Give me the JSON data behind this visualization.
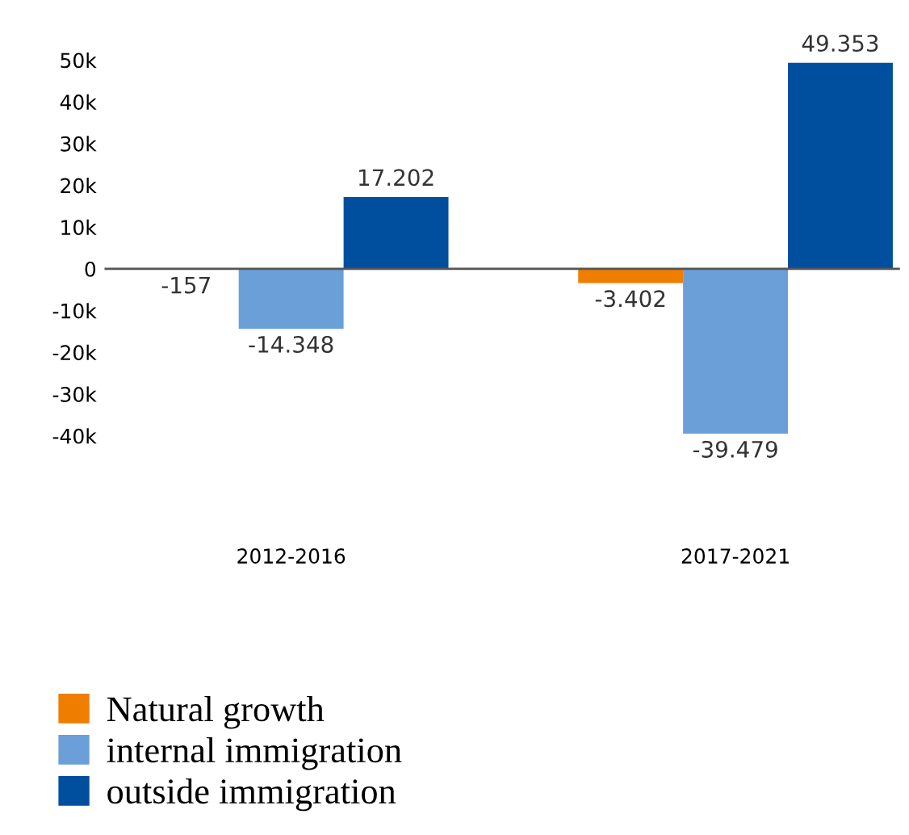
{
  "chart_data": {
    "type": "bar",
    "categories": [
      "2012-2016",
      "2017-2021"
    ],
    "series": [
      {
        "name": "Natural growth",
        "color": "#ef7d00",
        "values": [
          -157,
          -3402
        ],
        "value_labels": [
          "-157",
          "-3.402"
        ]
      },
      {
        "name": "internal immigration",
        "color": "#6a9fd8",
        "values": [
          -14348,
          -39479
        ],
        "value_labels": [
          "-14.348",
          "-39.479"
        ]
      },
      {
        "name": "outside immigration",
        "color": "#004f9f",
        "values": [
          17202,
          49353
        ],
        "value_labels": [
          "17.202",
          "49.353"
        ]
      }
    ],
    "ylim": [
      -40000,
      50000
    ],
    "yticks": [
      {
        "value": -40000,
        "label": "-40k"
      },
      {
        "value": -30000,
        "label": "-30k"
      },
      {
        "value": -20000,
        "label": "-20k"
      },
      {
        "value": -10000,
        "label": "-10k"
      },
      0,
      {
        "value": 10000,
        "label": "10k"
      },
      {
        "value": 20000,
        "label": "20k"
      },
      {
        "value": 30000,
        "label": "30k"
      },
      {
        "value": 40000,
        "label": "40k"
      },
      {
        "value": 50000,
        "label": "50k"
      }
    ],
    "ref_lines": [
      {
        "axis": "y",
        "value": 0,
        "color": "#555555"
      }
    ],
    "grid": false,
    "legend": "bottom"
  }
}
